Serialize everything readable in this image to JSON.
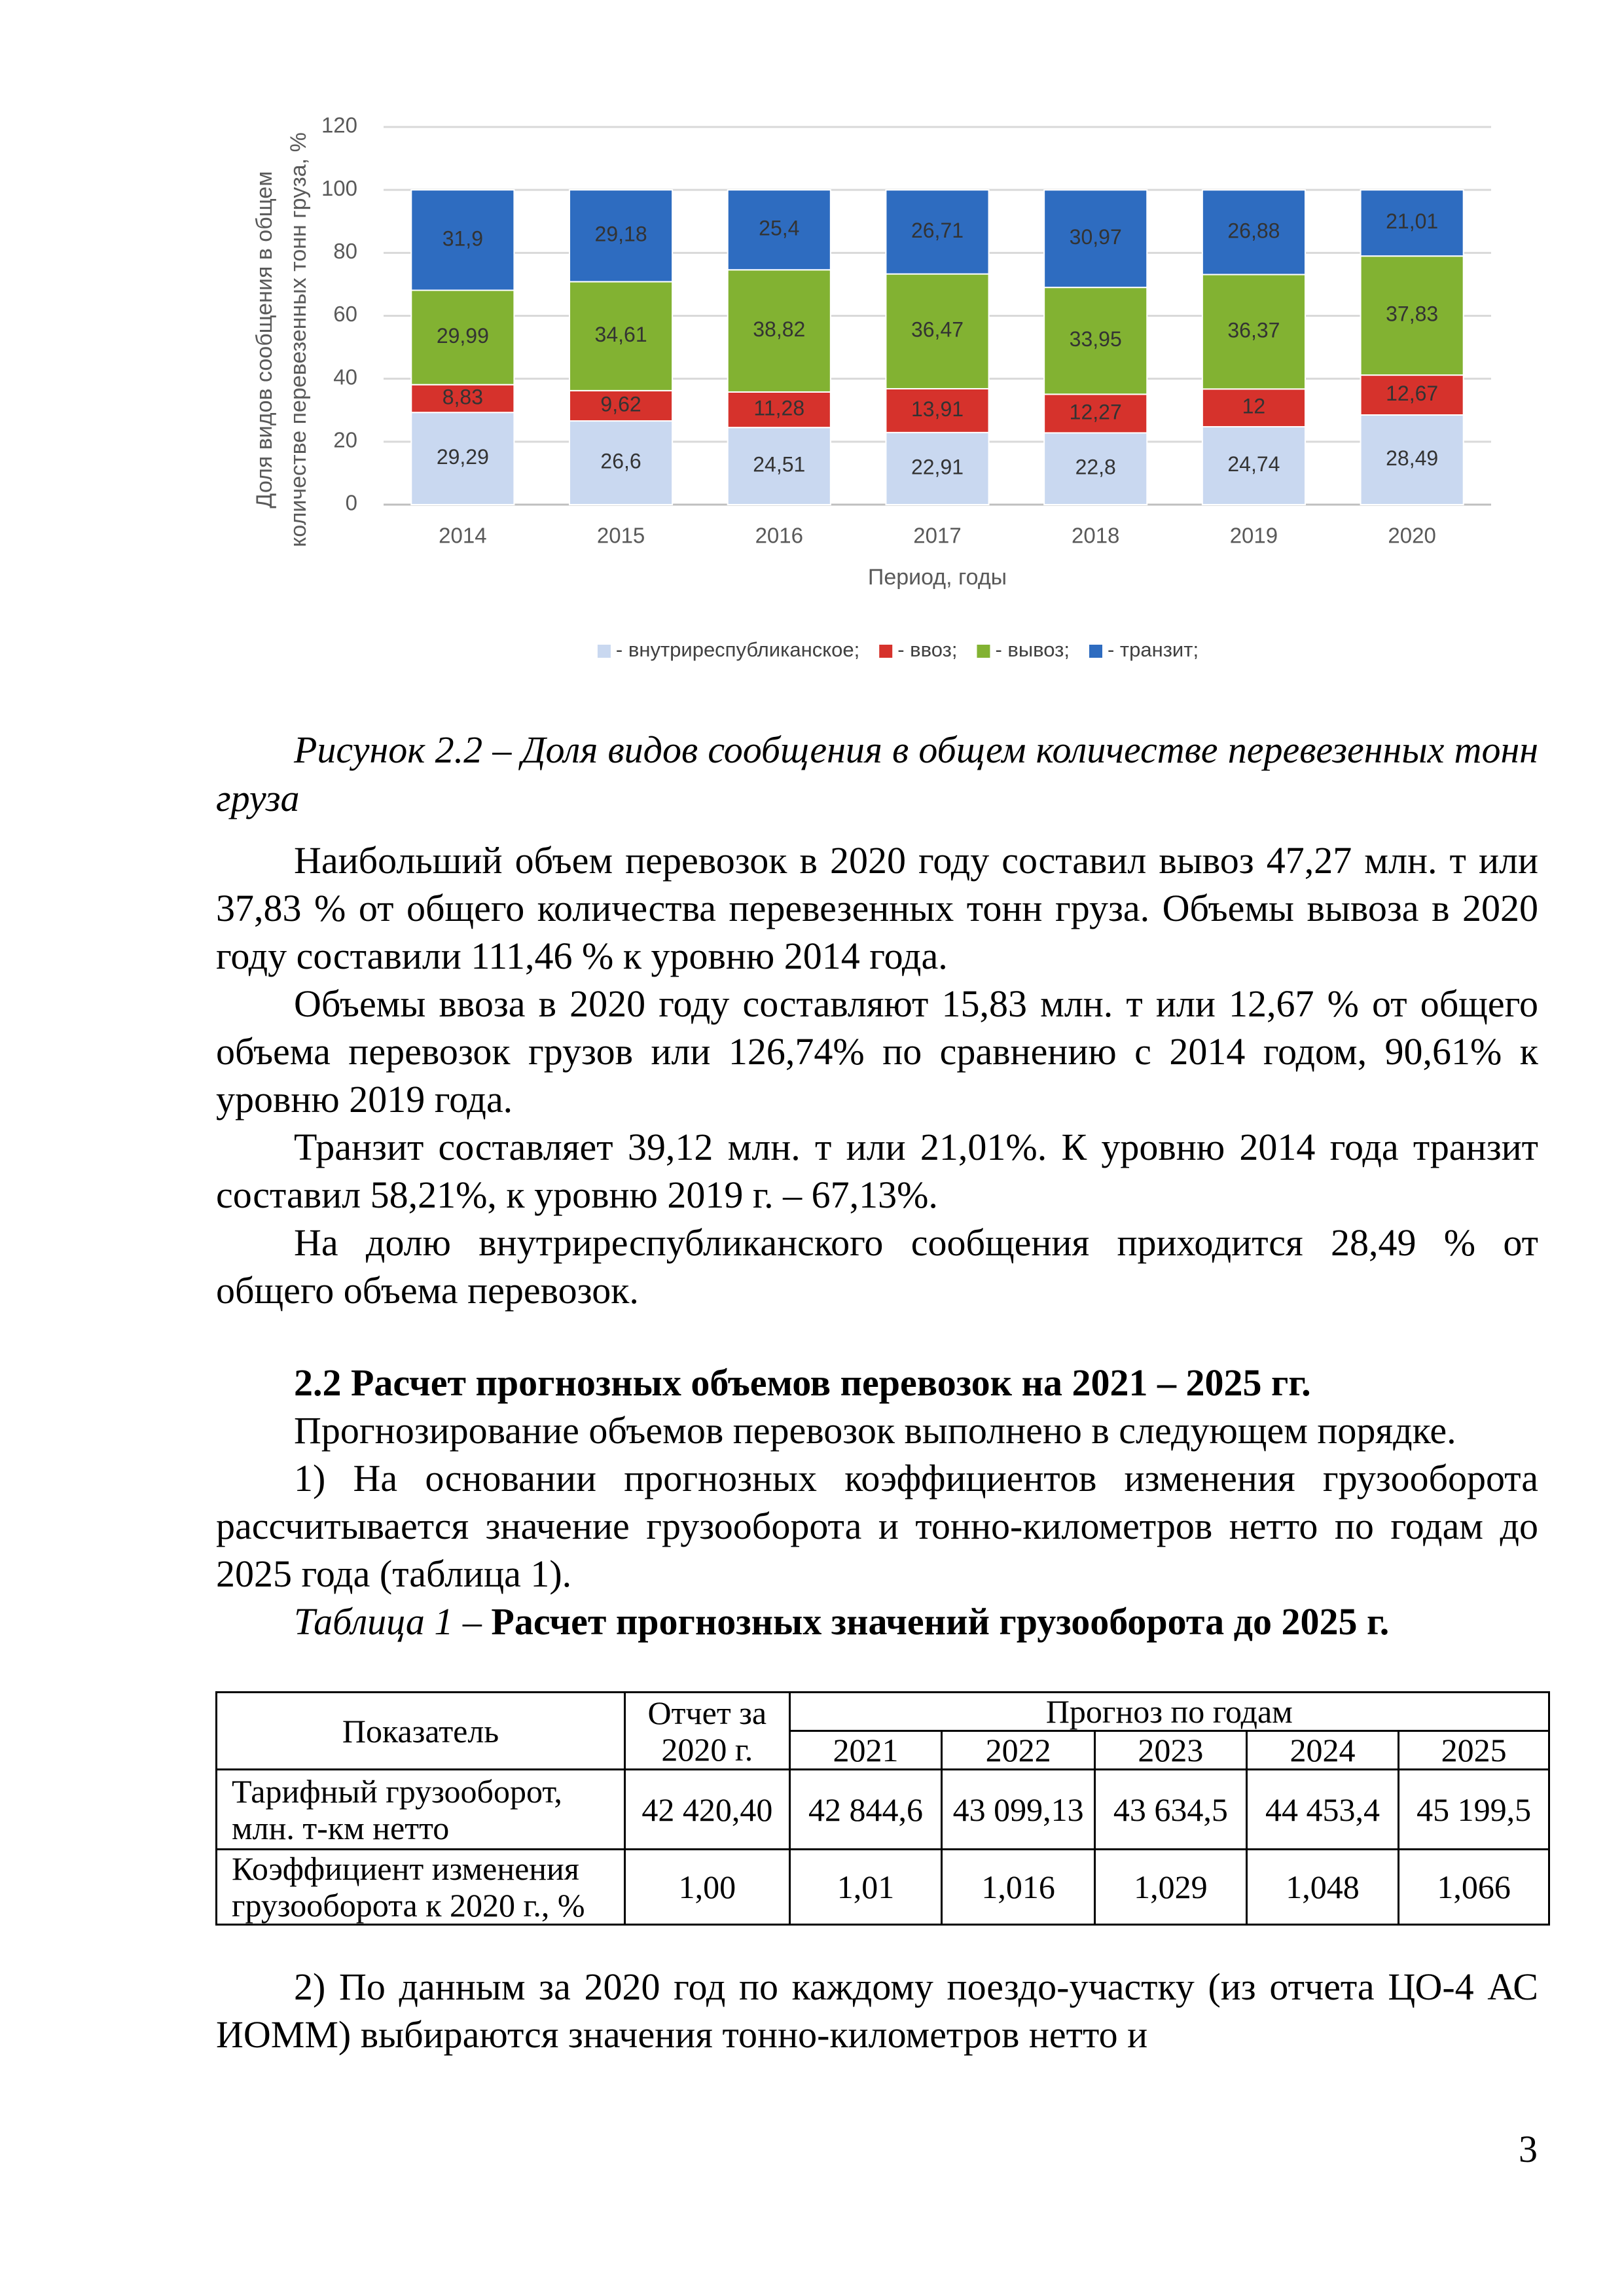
{
  "chart_data": {
    "type": "stacked-bar",
    "y_label": [
      "Доля видов сообщения в общем",
      "количестве перевезенных тонн груза, %"
    ],
    "x_label": "Период, годы",
    "categories": [
      "2014",
      "2015",
      "2016",
      "2017",
      "2018",
      "2019",
      "2020"
    ],
    "series": [
      {
        "name": "- внутриреспубликанское;",
        "color": "#c9d8f0",
        "values": [
          29.29,
          26.6,
          24.51,
          22.91,
          22.8,
          24.74,
          28.49
        ],
        "value_labels": [
          "29,29",
          "26,6",
          "24,51",
          "22,91",
          "22,8",
          "24,74",
          "28,49"
        ]
      },
      {
        "name": "- ввоз;",
        "color": "#d6322c",
        "values": [
          8.83,
          9.62,
          11.28,
          13.91,
          12.27,
          12,
          12.67
        ],
        "value_labels": [
          "8,83",
          "9,62",
          "11,28",
          "13,91",
          "12,27",
          "12",
          "12,67"
        ]
      },
      {
        "name": "- вывоз;",
        "color": "#82b232",
        "values": [
          29.99,
          34.61,
          38.82,
          36.47,
          33.95,
          36.37,
          37.83
        ],
        "value_labels": [
          "29,99",
          "34,61",
          "38,82",
          "36,47",
          "33,95",
          "36,37",
          "37,83"
        ]
      },
      {
        "name": "- транзит;",
        "color": "#2e6cc0",
        "values": [
          31.9,
          29.18,
          25.4,
          26.71,
          30.97,
          26.88,
          21.01
        ],
        "value_labels": [
          "31,9",
          "29,18",
          "25,4",
          "26,71",
          "30,97",
          "26,88",
          "21,01"
        ]
      }
    ],
    "ylim": [
      0,
      120
    ],
    "yticks": [
      0,
      20,
      40,
      60,
      80,
      100,
      120
    ],
    "grid": true,
    "legend": "bottom"
  },
  "figure_caption": "Рисунок 2.2 – Доля видов сообщения в общем количестве перевезенных тонн груза",
  "paragraphs": [
    "Наибольший объем перевозок в 2020 году составил вывоз 47,27 млн. т или 37,83 % от общего количества перевезенных тонн груза. Объемы вывоза в 2020 году составили 111,46 % к уровню 2014 года.",
    "Объемы ввоза в 2020 году составляют 15,83 млн. т или 12,67 % от общего объема перевозок грузов или 126,74% по сравнению с 2014 годом, 90,61% к уровню 2019 года.",
    "Транзит составляет 39,12 млн. т или 21,01%. К уровню 2014 года транзит составил 58,21%, к уровню 2019 г. – 67,13%.",
    "На долю внутриреспубликанского сообщения приходится 28,49 % от общего объема перевозок."
  ],
  "section_heading": "2.2 Расчет прогнозных объемов перевозок на 2021 – 2025 гг.",
  "section_paragraphs": [
    "Прогнозирование объемов перевозок выполнено в следующем порядке.",
    "1) На основании прогнозных коэффициентов изменения грузооборота рассчитывается значение грузооборота и тонно-километров нетто по годам до 2025 года (таблица 1)."
  ],
  "table_title": {
    "label": "Таблица 1 – ",
    "text": "Расчет прогнозных значений грузооборота до 2025 г."
  },
  "table": {
    "header": [
      "Показатель",
      "Отчет за 2020 г.",
      "Прогноз по годам"
    ],
    "years": [
      "2021",
      "2022",
      "2023",
      "2024",
      "2025"
    ],
    "rows": [
      [
        "Тарифный грузооборот, млн. т-км нетто",
        "42 420,40",
        "42 844,6",
        "43 099,13",
        "43 634,5",
        "44 453,4",
        "45 199,5"
      ],
      [
        "Коэффициент изменения грузооборота к 2020 г., %",
        "1,00",
        "1,01",
        "1,016",
        "1,029",
        "1,048",
        "1,066"
      ]
    ]
  },
  "closing_paragraph": "2) По данным за 2020 год по каждому поездо-участку (из отчета ЦО-4 АС ИОММ) выбираются значения тонно-километров нетто и",
  "page_number": "3"
}
